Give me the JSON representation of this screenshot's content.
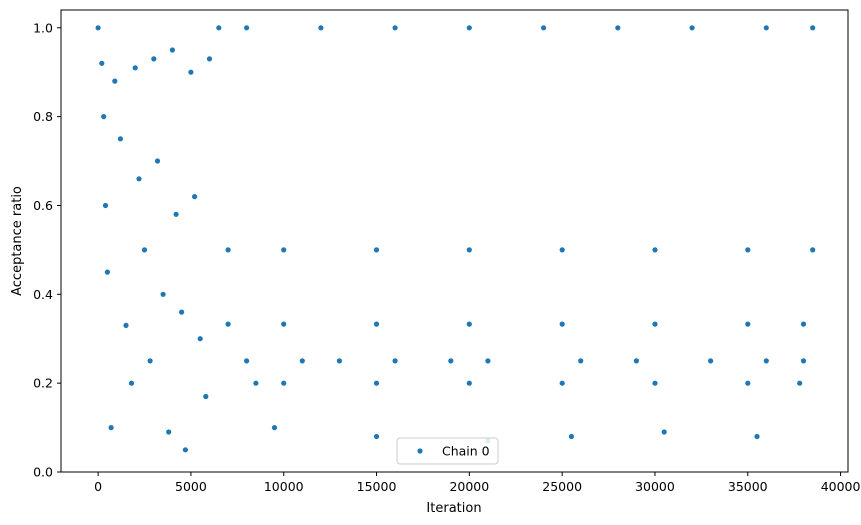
{
  "chart_data": {
    "type": "scatter",
    "xlabel": "Iteration",
    "ylabel": "Acceptance ratio",
    "xlim": [
      -2000,
      40400
    ],
    "ylim": [
      0.0,
      1.04
    ],
    "xticks": [
      0,
      5000,
      10000,
      15000,
      20000,
      25000,
      30000,
      35000,
      40000
    ],
    "yticks": [
      0.0,
      0.2,
      0.4,
      0.6,
      0.8,
      1.0
    ],
    "xtick_labels": [
      "0",
      "5000",
      "10000",
      "15000",
      "20000",
      "25000",
      "30000",
      "35000",
      "40000"
    ],
    "ytick_labels": [
      "0.0",
      "0.2",
      "0.4",
      "0.6",
      "0.8",
      "1.0"
    ],
    "legend": {
      "position": "bottom-center",
      "entries": [
        "Chain 0"
      ]
    },
    "grid": false,
    "series": [
      {
        "name": "Chain 0",
        "color": "#1f77b4",
        "marker": "circle",
        "points": [
          [
            0,
            1.0
          ],
          [
            200,
            0.92
          ],
          [
            300,
            0.8
          ],
          [
            400,
            0.6
          ],
          [
            500,
            0.45
          ],
          [
            700,
            0.1
          ],
          [
            900,
            0.88
          ],
          [
            1200,
            0.75
          ],
          [
            1500,
            0.33
          ],
          [
            1800,
            0.2
          ],
          [
            2000,
            0.91
          ],
          [
            2200,
            0.66
          ],
          [
            2500,
            0.5
          ],
          [
            2800,
            0.25
          ],
          [
            3000,
            0.93
          ],
          [
            3200,
            0.7
          ],
          [
            3500,
            0.4
          ],
          [
            3800,
            0.09
          ],
          [
            4000,
            0.95
          ],
          [
            4200,
            0.58
          ],
          [
            4500,
            0.36
          ],
          [
            4700,
            0.05
          ],
          [
            5000,
            0.9
          ],
          [
            5200,
            0.62
          ],
          [
            5500,
            0.3
          ],
          [
            5800,
            0.17
          ],
          [
            6000,
            0.93
          ],
          [
            6500,
            1.0
          ],
          [
            8000,
            1.0
          ],
          [
            12000,
            1.0
          ],
          [
            16000,
            1.0
          ],
          [
            20000,
            1.0
          ],
          [
            24000,
            1.0
          ],
          [
            28000,
            1.0
          ],
          [
            32000,
            1.0
          ],
          [
            36000,
            1.0
          ],
          [
            38500,
            1.0
          ],
          [
            7000,
            0.5
          ],
          [
            10000,
            0.5
          ],
          [
            15000,
            0.5
          ],
          [
            20000,
            0.5
          ],
          [
            25000,
            0.5
          ],
          [
            30000,
            0.5
          ],
          [
            35000,
            0.5
          ],
          [
            38500,
            0.5
          ],
          [
            7000,
            0.333
          ],
          [
            10000,
            0.333
          ],
          [
            15000,
            0.333
          ],
          [
            20000,
            0.333
          ],
          [
            25000,
            0.333
          ],
          [
            30000,
            0.333
          ],
          [
            35000,
            0.333
          ],
          [
            38000,
            0.333
          ],
          [
            8000,
            0.25
          ],
          [
            11000,
            0.25
          ],
          [
            13000,
            0.25
          ],
          [
            16000,
            0.25
          ],
          [
            19000,
            0.25
          ],
          [
            21000,
            0.25
          ],
          [
            26000,
            0.25
          ],
          [
            29000,
            0.25
          ],
          [
            33000,
            0.25
          ],
          [
            36000,
            0.25
          ],
          [
            38000,
            0.25
          ],
          [
            8500,
            0.2
          ],
          [
            10000,
            0.2
          ],
          [
            15000,
            0.2
          ],
          [
            20000,
            0.2
          ],
          [
            25000,
            0.2
          ],
          [
            30000,
            0.2
          ],
          [
            35000,
            0.2
          ],
          [
            37800,
            0.2
          ],
          [
            9500,
            0.1
          ],
          [
            15000,
            0.08
          ],
          [
            21000,
            0.07
          ],
          [
            25500,
            0.08
          ],
          [
            30500,
            0.09
          ],
          [
            35500,
            0.08
          ]
        ]
      }
    ]
  }
}
